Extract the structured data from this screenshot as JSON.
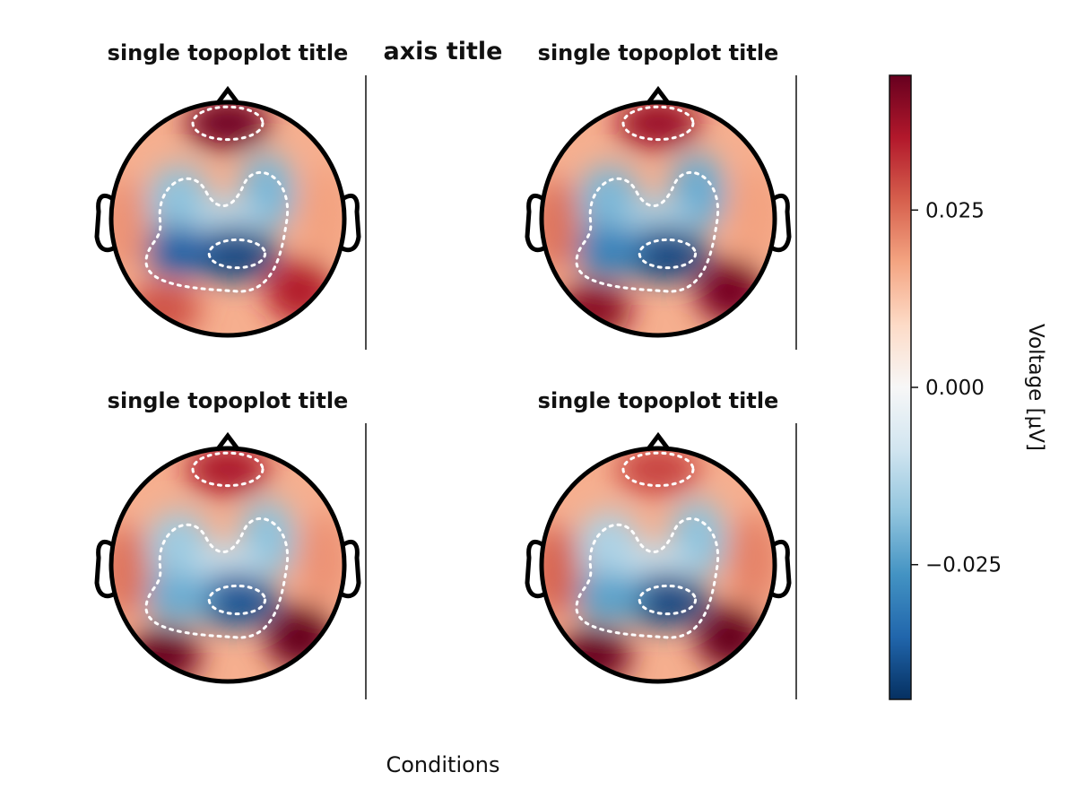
{
  "figure": {
    "axis_title": "axis title",
    "xlabel": "Conditions"
  },
  "colors": {
    "positive": "#67001f",
    "negative": "#053061",
    "outline": "#000000",
    "contour": "#ffffff"
  },
  "chart_data": {
    "type": "heatmap",
    "colormap": "RdBu_r",
    "topoplots": [
      {
        "title": "single topoplot title",
        "features": [
          {
            "region": "frontal",
            "value": 0.043
          },
          {
            "region": "fronto-central-left",
            "value": -0.018
          },
          {
            "region": "fronto-central-right",
            "value": -0.02
          },
          {
            "region": "central",
            "value": -0.012
          },
          {
            "region": "parietal",
            "value": -0.04
          },
          {
            "region": "parietal-left",
            "value": -0.036
          },
          {
            "region": "temporal-left",
            "value": 0.02
          },
          {
            "region": "temporal-right",
            "value": 0.018
          },
          {
            "region": "occipital-left",
            "value": 0.028
          },
          {
            "region": "occipital-right",
            "value": 0.035
          }
        ]
      },
      {
        "title": "single topoplot title",
        "features": [
          {
            "region": "frontal",
            "value": 0.038
          },
          {
            "region": "fronto-central-left",
            "value": -0.02
          },
          {
            "region": "fronto-central-right",
            "value": -0.022
          },
          {
            "region": "central",
            "value": -0.014
          },
          {
            "region": "parietal",
            "value": -0.04
          },
          {
            "region": "parietal-left",
            "value": -0.03
          },
          {
            "region": "temporal-left",
            "value": 0.024
          },
          {
            "region": "temporal-right",
            "value": 0.018
          },
          {
            "region": "occipital-left",
            "value": 0.04
          },
          {
            "region": "occipital-right",
            "value": 0.042
          }
        ]
      },
      {
        "title": "single topoplot title",
        "features": [
          {
            "region": "frontal",
            "value": 0.036
          },
          {
            "region": "fronto-central-left",
            "value": -0.016
          },
          {
            "region": "fronto-central-right",
            "value": -0.018
          },
          {
            "region": "central",
            "value": -0.01
          },
          {
            "region": "parietal",
            "value": -0.038
          },
          {
            "region": "parietal-left",
            "value": -0.022
          },
          {
            "region": "temporal-left",
            "value": 0.024
          },
          {
            "region": "temporal-right",
            "value": 0.02
          },
          {
            "region": "occipital-left",
            "value": 0.044
          },
          {
            "region": "occipital-right",
            "value": 0.044
          }
        ]
      },
      {
        "title": "single topoplot title",
        "features": [
          {
            "region": "frontal",
            "value": 0.03
          },
          {
            "region": "fronto-central-left",
            "value": -0.014
          },
          {
            "region": "fronto-central-right",
            "value": -0.018
          },
          {
            "region": "central",
            "value": -0.01
          },
          {
            "region": "parietal",
            "value": -0.04
          },
          {
            "region": "parietal-left",
            "value": -0.024
          },
          {
            "region": "temporal-left",
            "value": 0.026
          },
          {
            "region": "temporal-right",
            "value": 0.022
          },
          {
            "region": "occipital-left",
            "value": 0.044
          },
          {
            "region": "occipital-right",
            "value": 0.044
          }
        ]
      }
    ],
    "colorbar": {
      "label": "Voltage [μV]",
      "range": [
        -0.044,
        0.044
      ],
      "ticks": [
        0.025,
        0.0,
        -0.025
      ],
      "tick_labels": [
        "0.025",
        "0.000",
        "−0.025"
      ]
    }
  }
}
